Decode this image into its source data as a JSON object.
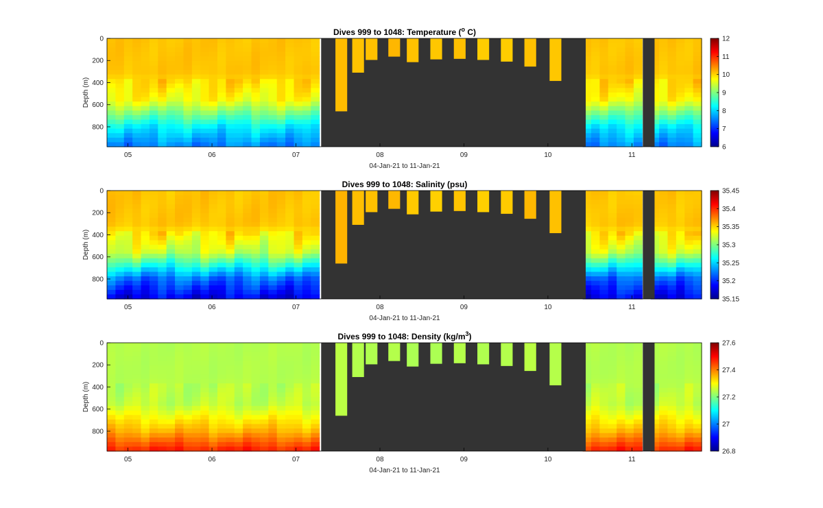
{
  "chart_data": [
    {
      "type": "heatmap",
      "title": "Dives 999 to 1048: Temperature (",
      "title_super": "o",
      "title_end": " C)",
      "xlabel": "04-Jan-21 to 11-Jan-21",
      "ylabel": "Depth (m)",
      "x_tick_labels": [
        "05",
        "06",
        "07",
        "08",
        "09",
        "10",
        "11"
      ],
      "y_tick_labels": [
        "0",
        "200",
        "400",
        "600",
        "800"
      ],
      "ylim": [
        0,
        980
      ],
      "xlim": [
        0,
        7.08
      ],
      "colorbar": {
        "min": 6,
        "max": 12,
        "ticks": [
          "6",
          "7",
          "8",
          "9",
          "10",
          "11",
          "12"
        ]
      },
      "profile_values": {
        "surface": 10.1,
        "mid": 9.7,
        "deep": 8.2,
        "bottom": 7.5
      }
    },
    {
      "type": "heatmap",
      "title": "Dives 999 to 1048: Salinity (psu)",
      "xlabel": "04-Jan-21 to 11-Jan-21",
      "ylabel": "Depth (m)",
      "x_tick_labels": [
        "05",
        "06",
        "07",
        "08",
        "09",
        "10",
        "11"
      ],
      "y_tick_labels": [
        "0",
        "200",
        "400",
        "600",
        "800"
      ],
      "ylim": [
        0,
        980
      ],
      "xlim": [
        0,
        7.08
      ],
      "colorbar": {
        "min": 35.15,
        "max": 35.45,
        "ticks": [
          "35.15",
          "35.2",
          "35.25",
          "35.3",
          "35.35",
          "35.4",
          "35.45"
        ]
      },
      "profile_values": {
        "surface": 35.355,
        "mid": 35.32,
        "deep": 35.22,
        "bottom": 35.18
      }
    },
    {
      "type": "heatmap",
      "title": "Dives 999 to 1048: Density (kg/m",
      "title_super": "3",
      "title_end": ")",
      "xlabel": "04-Jan-21 to 11-Jan-21",
      "ylabel": "Depth (m)",
      "x_tick_labels": [
        "05",
        "06",
        "07",
        "08",
        "09",
        "10",
        "11"
      ],
      "y_tick_labels": [
        "0",
        "200",
        "400",
        "600",
        "800"
      ],
      "ylim": [
        0,
        980
      ],
      "xlim": [
        0,
        7.08
      ],
      "colorbar": {
        "min": 26.8,
        "max": 27.6,
        "ticks": [
          "26.8",
          "27",
          "27.2",
          "27.4",
          "27.6"
        ]
      },
      "profile_values": {
        "surface": 27.24,
        "mid": 27.25,
        "deep": 27.36,
        "bottom": 27.48
      }
    }
  ],
  "shared": {
    "x_tick_positions_days": [
      0.25,
      1.25,
      2.25,
      3.25,
      4.25,
      5.25,
      6.25
    ],
    "y_tick_values": [
      0,
      200,
      400,
      600,
      800
    ],
    "gap_color": "#333333",
    "gap_segments": [
      [
        2.55,
        5.7
      ],
      [
        6.38,
        6.52
      ]
    ],
    "short_dives": [
      {
        "x": [
          2.72,
          2.86
        ],
        "max_depth": 660
      },
      {
        "x": [
          2.92,
          3.06
        ],
        "max_depth": 310
      },
      {
        "x": [
          3.08,
          3.22
        ],
        "max_depth": 195
      },
      {
        "x": [
          3.35,
          3.49
        ],
        "max_depth": 165
      },
      {
        "x": [
          3.57,
          3.71
        ],
        "max_depth": 215
      },
      {
        "x": [
          3.85,
          3.99
        ],
        "max_depth": 190
      },
      {
        "x": [
          4.13,
          4.27
        ],
        "max_depth": 185
      },
      {
        "x": [
          4.41,
          4.55
        ],
        "max_depth": 195
      },
      {
        "x": [
          4.69,
          4.83
        ],
        "max_depth": 210
      },
      {
        "x": [
          4.97,
          5.11
        ],
        "max_depth": 255
      },
      {
        "x": [
          5.27,
          5.41
        ],
        "max_depth": 385
      }
    ]
  }
}
